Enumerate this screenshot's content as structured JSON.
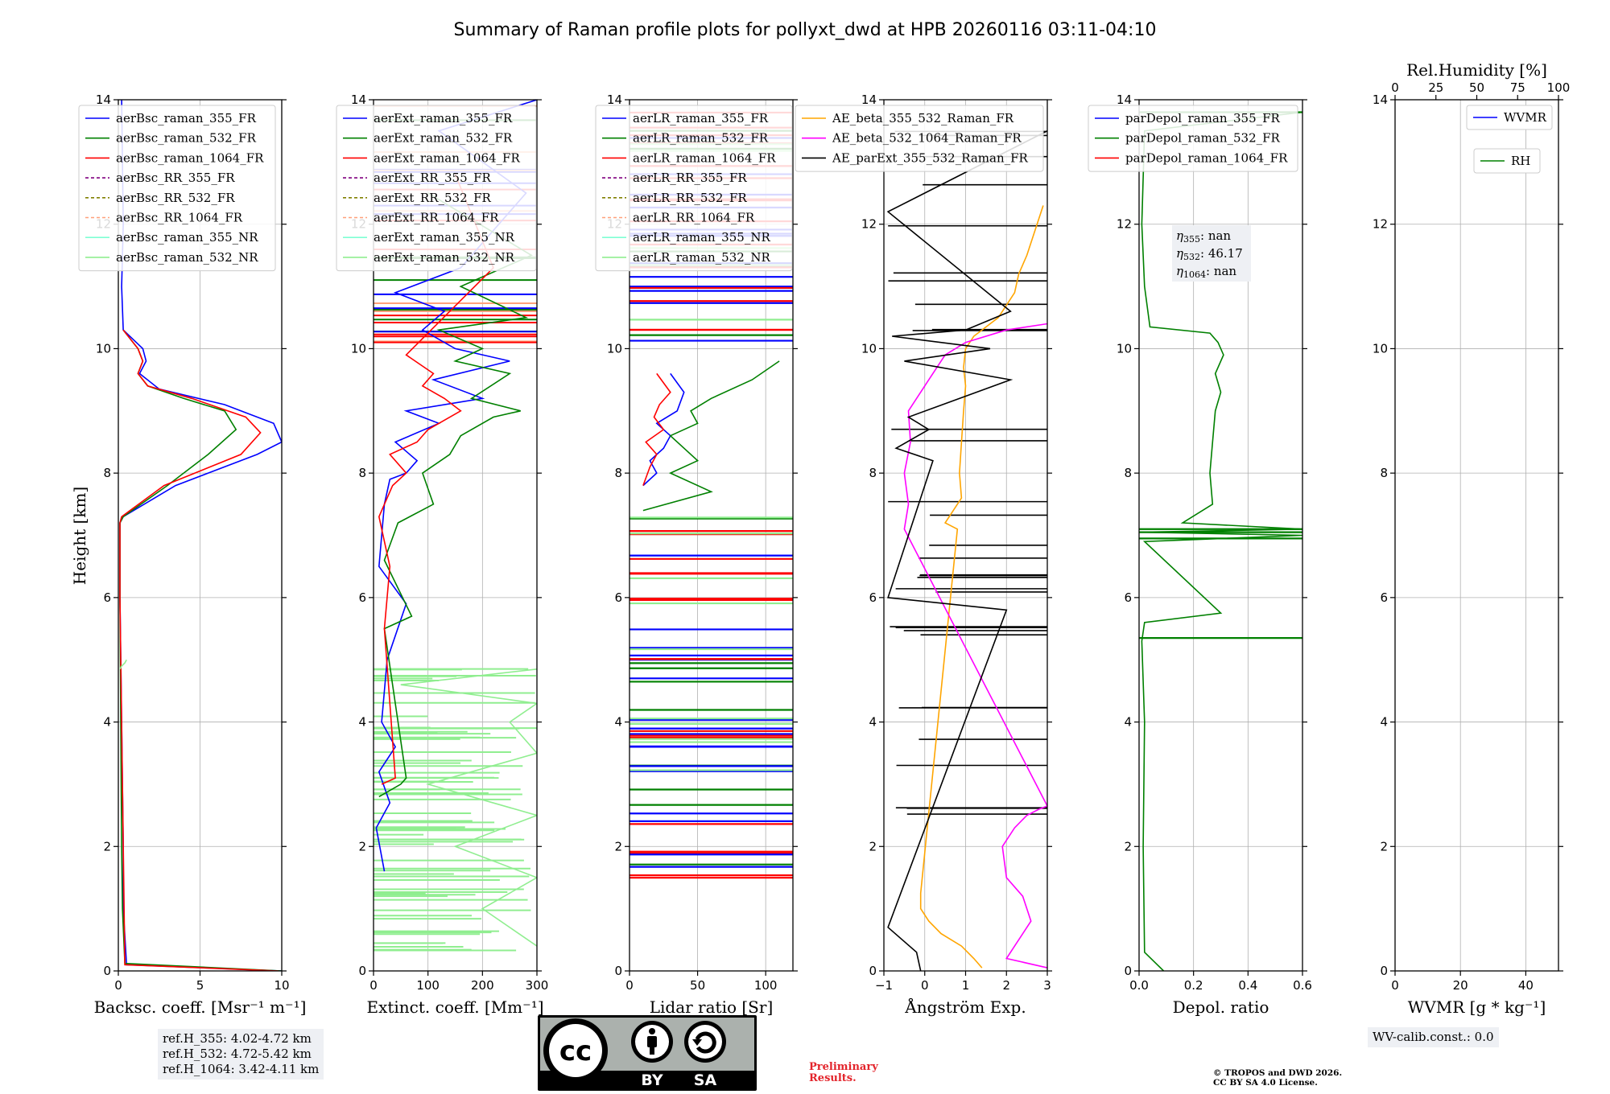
{
  "title": "Summary of Raman profile plots for pollyxt_dwd at HPB 20260116 03:11-04:10",
  "y_axis": {
    "label": "Height [km]",
    "ticks": [
      "0",
      "2",
      "4",
      "6",
      "8",
      "10",
      "12",
      "14"
    ],
    "range": [
      0,
      14
    ]
  },
  "colors": {
    "blue": "#0000ff",
    "green": "#008000",
    "red": "#ff0000",
    "purple": "#800080",
    "olive": "#808000",
    "salmon": "#ffa07a",
    "aqua": "#7fffd4",
    "lightgreen": "#90ee90",
    "orange": "#ffa500",
    "magenta": "#ff00ff",
    "black": "#000000",
    "grid": "#b0b0b0"
  },
  "panels": [
    {
      "id": "bsc",
      "xlabel": "Backsc. coeff. [Msr⁻¹ m⁻¹]",
      "xticks": [
        "0",
        "5",
        "10"
      ],
      "xlim": [
        0,
        10
      ],
      "legend": [
        {
          "label": "aerBsc_raman_355_FR",
          "color": "#0000ff",
          "dash": false
        },
        {
          "label": "aerBsc_raman_532_FR",
          "color": "#008000",
          "dash": false
        },
        {
          "label": "aerBsc_raman_1064_FR",
          "color": "#ff0000",
          "dash": false
        },
        {
          "label": "aerBsc_RR_355_FR",
          "color": "#800080",
          "dash": true
        },
        {
          "label": "aerBsc_RR_532_FR",
          "color": "#808000",
          "dash": true
        },
        {
          "label": "aerBsc_RR_1064_FR",
          "color": "#ffa07a",
          "dash": true
        },
        {
          "label": "aerBsc_raman_355_NR",
          "color": "#7fffd4",
          "dash": false
        },
        {
          "label": "aerBsc_raman_532_NR",
          "color": "#90ee90",
          "dash": false
        }
      ]
    },
    {
      "id": "ext",
      "xlabel": "Extinct. coeff. [Mm⁻¹]",
      "xticks": [
        "0",
        "100",
        "200",
        "300"
      ],
      "xlim": [
        0,
        300
      ],
      "legend": [
        {
          "label": "aerExt_raman_355_FR",
          "color": "#0000ff",
          "dash": false
        },
        {
          "label": "aerExt_raman_532_FR",
          "color": "#008000",
          "dash": false
        },
        {
          "label": "aerExt_raman_1064_FR",
          "color": "#ff0000",
          "dash": false
        },
        {
          "label": "aerExt_RR_355_FR",
          "color": "#800080",
          "dash": true
        },
        {
          "label": "aerExt_RR_532_FR",
          "color": "#808000",
          "dash": true
        },
        {
          "label": "aerExt_RR_1064_FR",
          "color": "#ffa07a",
          "dash": true
        },
        {
          "label": "aerExt_raman_355_NR",
          "color": "#7fffd4",
          "dash": false
        },
        {
          "label": "aerExt_raman_532_NR",
          "color": "#90ee90",
          "dash": false
        }
      ]
    },
    {
      "id": "lr",
      "xlabel": "Lidar ratio [Sr]",
      "xticks": [
        "0",
        "50",
        "100"
      ],
      "xlim": [
        0,
        120
      ],
      "legend": [
        {
          "label": "aerLR_raman_355_FR",
          "color": "#0000ff",
          "dash": false
        },
        {
          "label": "aerLR_raman_532_FR",
          "color": "#008000",
          "dash": false
        },
        {
          "label": "aerLR_raman_1064_FR",
          "color": "#ff0000",
          "dash": false
        },
        {
          "label": "aerLR_RR_355_FR",
          "color": "#800080",
          "dash": true
        },
        {
          "label": "aerLR_RR_532_FR",
          "color": "#808000",
          "dash": true
        },
        {
          "label": "aerLR_RR_1064_FR",
          "color": "#ffa07a",
          "dash": true
        },
        {
          "label": "aerLR_raman_355_NR",
          "color": "#7fffd4",
          "dash": false
        },
        {
          "label": "aerLR_raman_532_NR",
          "color": "#90ee90",
          "dash": false
        }
      ]
    },
    {
      "id": "ae",
      "xlabel": "Ångström Exp.",
      "xticks": [
        "−1",
        "0",
        "1",
        "2",
        "3"
      ],
      "xlim": [
        -1,
        3
      ],
      "legend": [
        {
          "label": "AE_beta_355_532_Raman_FR",
          "color": "#ffa500",
          "dash": false
        },
        {
          "label": "AE_beta_532_1064_Raman_FR",
          "color": "#ff00ff",
          "dash": false
        },
        {
          "label": "AE_parExt_355_532_Raman_FR",
          "color": "#000000",
          "dash": false
        }
      ]
    },
    {
      "id": "depol",
      "xlabel": "Depol. ratio",
      "xticks": [
        "0.0",
        "0.2",
        "0.4",
        "0.6"
      ],
      "xlim": [
        0,
        0.6
      ],
      "legend": [
        {
          "label": "parDepol_raman_355_FR",
          "color": "#0000ff",
          "dash": false
        },
        {
          "label": "parDepol_raman_532_FR",
          "color": "#008000",
          "dash": false
        },
        {
          "label": "parDepol_raman_1064_FR",
          "color": "#ff0000",
          "dash": false
        }
      ],
      "eta": {
        "prefix": "η",
        "items": [
          {
            "sub": "355",
            "value": "nan"
          },
          {
            "sub": "532",
            "value": "46.17"
          },
          {
            "sub": "1064",
            "value": "nan"
          }
        ]
      }
    },
    {
      "id": "wv",
      "xlabel": "WVMR [g * kg⁻¹]",
      "xticks": [
        "0",
        "20",
        "40"
      ],
      "xlim": [
        0,
        50
      ],
      "top_label": "Rel.Humidity [%]",
      "top_ticks": [
        "0",
        "25",
        "50",
        "75",
        "100"
      ],
      "legend": [
        {
          "label": "WVMR",
          "color": "#0000ff",
          "dash": false
        },
        {
          "label": "RH",
          "color": "#008000",
          "dash": false
        }
      ]
    }
  ],
  "chart_data": {
    "type": "line",
    "title": "Summary of Raman profile plots for pollyxt_dwd at HPB 20260116 03:11-04:10",
    "ylabel": "Height [km]",
    "ylim": [
      0,
      14
    ],
    "panels": [
      {
        "name": "Backscatter coefficient",
        "xlabel": "Backsc. coeff. [Msr⁻¹ m⁻¹]",
        "xlim": [
          0,
          10
        ],
        "series": [
          {
            "name": "aerBsc_raman_355_FR",
            "x": [
              10,
              0.5,
              0.3,
              0.3,
              0.2,
              0.1,
              0.1,
              0.1,
              0.3,
              3.5,
              8.5,
              10.0,
              9.5,
              6.5,
              2.5,
              1.3,
              1.7,
              1.5,
              0.3,
              0.2,
              0.3,
              0.2
            ],
            "y": [
              0.0,
              0.1,
              1.0,
              2.0,
              4.0,
              6.0,
              7.0,
              7.2,
              7.3,
              7.8,
              8.3,
              8.5,
              8.8,
              9.1,
              9.35,
              9.6,
              9.8,
              10.0,
              10.3,
              11.0,
              12.0,
              14.0
            ]
          },
          {
            "name": "aerBsc_raman_532_FR",
            "x": [
              10,
              0.4,
              0.25,
              0.2,
              0.15,
              0.1,
              0.1,
              0.1,
              0.3,
              3.0,
              5.5,
              7.2,
              6.5,
              4.0,
              1.8,
              1.2,
              1.5,
              1.2,
              0.3
            ],
            "y": [
              0.0,
              0.12,
              1.0,
              2.0,
              4.0,
              6.0,
              7.0,
              7.2,
              7.3,
              7.8,
              8.3,
              8.7,
              9.0,
              9.2,
              9.4,
              9.6,
              9.8,
              10.0,
              10.3
            ]
          },
          {
            "name": "aerBsc_raman_1064_FR",
            "x": [
              9.8,
              0.4,
              0.1,
              0.1,
              0.2,
              2.8,
              7.5,
              8.7,
              7.8,
              4.5,
              1.8,
              1.2,
              1.5,
              1.2,
              0.3
            ],
            "y": [
              0.0,
              0.1,
              6.0,
              7.2,
              7.3,
              7.8,
              8.3,
              8.65,
              8.9,
              9.2,
              9.4,
              9.6,
              9.8,
              10.0,
              10.3
            ]
          },
          {
            "name": "aerBsc_raman_532_NR",
            "x": [
              0.1,
              0.2,
              0.4,
              0.5
            ],
            "y": [
              4.85,
              4.9,
              4.95,
              5.0
            ]
          }
        ]
      },
      {
        "name": "Extinction coefficient",
        "xlabel": "Extinct. coeff. [Mm⁻¹]",
        "xlim": [
          0,
          300
        ],
        "series": [
          {
            "name": "aerExt_raman_355_FR",
            "x": [
              20,
              5,
              30,
              10,
              40,
              15,
              25,
              60,
              10,
              20,
              30,
              60,
              80,
              40,
              120,
              60,
              200,
              110,
              250,
              150,
              90,
              130,
              40,
              160,
              280,
              120,
              300
            ],
            "y": [
              1.6,
              2.3,
              2.7,
              3.2,
              3.6,
              4.0,
              5.0,
              5.9,
              6.5,
              7.5,
              7.9,
              8.0,
              8.2,
              8.5,
              8.8,
              9.0,
              9.2,
              9.5,
              9.8,
              10.0,
              10.3,
              10.6,
              10.9,
              11.3,
              12.5,
              13.5,
              14.0
            ]
          },
          {
            "name": "aerExt_raman_532_FR",
            "x": [
              10,
              50,
              60,
              20,
              70,
              20,
              45,
              110,
              90,
              140,
              160,
              220,
              270,
              180,
              250,
              150,
              200,
              120,
              280,
              160,
              290,
              100
            ],
            "y": [
              2.8,
              3.0,
              3.1,
              5.5,
              5.7,
              6.6,
              7.2,
              7.5,
              8.0,
              8.3,
              8.6,
              8.9,
              9.0,
              9.2,
              9.6,
              9.8,
              10.0,
              10.3,
              10.5,
              11.0,
              11.5,
              12.5
            ]
          },
          {
            "name": "aerExt_raman_1064_FR",
            "x": [
              15,
              40,
              20,
              30,
              10,
              35,
              60,
              30,
              80,
              100,
              120,
              160,
              130,
              90,
              110,
              60,
              220,
              150
            ],
            "y": [
              3.0,
              3.1,
              5.5,
              6.5,
              7.3,
              7.8,
              8.0,
              8.3,
              8.5,
              8.7,
              8.8,
              9.0,
              9.2,
              9.4,
              9.6,
              9.9,
              11.3,
              12.8
            ]
          },
          {
            "name": "aerExt_raman_532_NR",
            "x": [
              300,
              200,
              300,
              150,
              300,
              100,
              300,
              250,
              300,
              50,
              300
            ],
            "y": [
              0.4,
              1.0,
              1.5,
              2.0,
              2.5,
              3.0,
              3.5,
              4.0,
              4.3,
              4.6,
              4.85
            ]
          }
        ]
      },
      {
        "name": "Lidar ratio",
        "xlabel": "Lidar ratio [Sr]",
        "xlim": [
          0,
          120
        ],
        "series": [
          {
            "name": "aerLR_raman_355_FR",
            "x": [
              10,
              20,
              15,
              25,
              30,
              20,
              35,
              40,
              30
            ],
            "y": [
              7.8,
              8.0,
              8.2,
              8.4,
              8.6,
              8.8,
              9.0,
              9.3,
              9.6
            ]
          },
          {
            "name": "aerLR_raman_532_FR",
            "x": [
              10,
              60,
              30,
              50,
              40,
              30,
              50,
              45,
              60,
              90,
              110
            ],
            "y": [
              7.4,
              7.7,
              8.0,
              8.2,
              8.4,
              8.6,
              8.8,
              9.0,
              9.2,
              9.5,
              9.8
            ]
          },
          {
            "name": "aerLR_raman_1064_FR",
            "x": [
              10,
              15,
              20,
              12,
              25,
              18,
              22,
              30,
              20
            ],
            "y": [
              7.8,
              8.1,
              8.3,
              8.5,
              8.7,
              8.9,
              9.1,
              9.3,
              9.6
            ]
          }
        ]
      },
      {
        "name": "Angstrom exponent",
        "xlabel": "Ångström Exp.",
        "xlim": [
          -1,
          3
        ],
        "series": [
          {
            "name": "AE_beta_355_532_Raman_FR",
            "x": [
              1.4,
              1.2,
              0.9,
              0.4,
              0.1,
              -0.1,
              -0.1,
              0.8,
              0.5,
              0.9,
              0.85,
              0.9,
              0.95,
              1.0,
              0.95,
              1.0,
              1.2,
              1.8,
              2.0,
              2.2,
              2.3,
              2.5,
              2.9
            ],
            "y": [
              0.05,
              0.2,
              0.4,
              0.6,
              0.8,
              1.0,
              1.25,
              7.1,
              7.2,
              7.6,
              8.0,
              8.5,
              9.0,
              9.4,
              9.7,
              10.0,
              10.2,
              10.5,
              10.7,
              10.9,
              11.2,
              11.5,
              12.3
            ]
          },
          {
            "name": "AE_beta_532_1064_Raman_FR",
            "x": [
              3.0,
              2.0,
              2.2,
              2.6,
              2.4,
              2.0,
              1.9,
              2.2,
              2.5,
              2.8,
              3.0,
              -0.5,
              -0.4,
              -0.5,
              -0.35,
              -0.4,
              0.1,
              0.5,
              1.0,
              2.0,
              3.0
            ],
            "y": [
              0.05,
              0.2,
              0.4,
              0.8,
              1.2,
              1.5,
              2.0,
              2.3,
              2.5,
              2.6,
              2.65,
              7.1,
              7.5,
              8.0,
              8.5,
              9.0,
              9.5,
              9.9,
              10.1,
              10.3,
              10.4
            ]
          },
          {
            "name": "AE_parExt_355_532_Raman_FR",
            "x": [
              -0.1,
              -0.2,
              -0.9,
              2.0,
              -0.9,
              0.2,
              -0.7,
              0.1,
              -0.4,
              2.1,
              -0.5,
              1.6,
              -0.8,
              1.0,
              2.1,
              -0.9,
              3.0
            ],
            "y": [
              0.0,
              0.3,
              0.7,
              5.8,
              6.0,
              8.2,
              8.4,
              8.7,
              8.9,
              9.5,
              9.8,
              10.0,
              10.2,
              10.3,
              10.6,
              12.2,
              13.5
            ]
          }
        ]
      },
      {
        "name": "Depolarization ratio",
        "xlabel": "Depol. ratio",
        "xlim": [
          0,
          0.6
        ],
        "series": [
          {
            "name": "parDepol_raman_532_FR",
            "x": [
              0.09,
              0.02,
              0.015,
              0.02,
              0.01,
              0.02,
              0.3,
              0.02,
              0.6,
              0.01,
              0.6,
              0.16,
              0.27,
              0.26,
              0.27,
              0.28,
              0.3,
              0.28,
              0.31,
              0.29,
              0.26,
              0.04,
              0.02,
              0.01,
              0.02,
              0.6
            ],
            "y": [
              0.0,
              0.3,
              2.0,
              4.0,
              5.3,
              5.6,
              5.75,
              6.9,
              7.0,
              7.05,
              7.1,
              7.2,
              7.5,
              8.0,
              8.5,
              9.0,
              9.3,
              9.6,
              9.9,
              10.1,
              10.25,
              10.35,
              11.0,
              12.0,
              13.5,
              13.8
            ]
          }
        ]
      },
      {
        "name": "Water vapor",
        "xlabel": "WVMR [g * kg⁻¹]",
        "xlim": [
          0,
          50
        ],
        "top_label": "Rel.Humidity [%]",
        "series": [
          {
            "name": "WVMR",
            "x": [],
            "y": []
          },
          {
            "name": "RH",
            "x": [],
            "y": []
          }
        ]
      }
    ]
  },
  "footer": {
    "ref_heights": [
      "ref.H_355: 4.02-4.72 km",
      "ref.H_532: 4.72-5.42 km",
      "ref.H_1064: 3.42-4.11 km"
    ],
    "wv_calib": "WV-calib.const.: 0.0",
    "preliminary": [
      "Preliminary",
      "Results."
    ],
    "copyright": [
      "© TROPOS and DWD 2026.",
      "CC BY SA 4.0 License."
    ],
    "cc_logo": {
      "cc": "cc",
      "by": "BY",
      "sa": "SA"
    }
  }
}
